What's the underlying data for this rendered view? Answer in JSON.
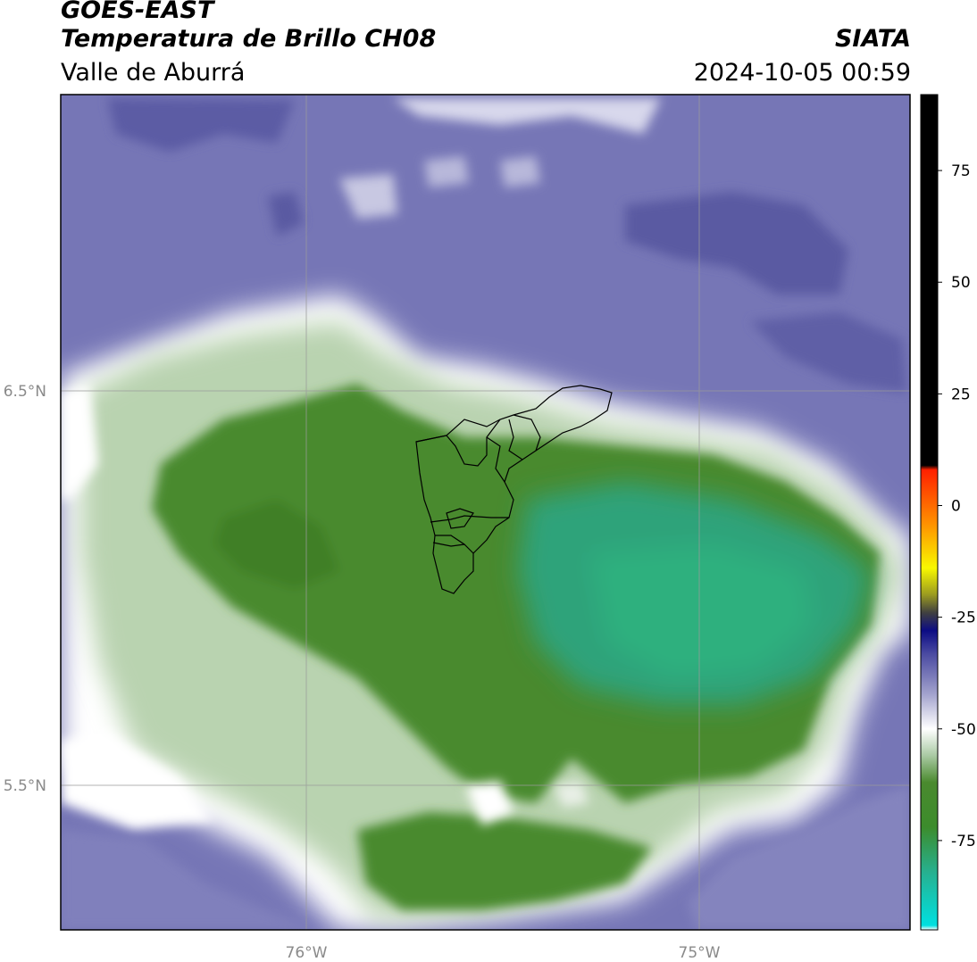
{
  "header": {
    "title_line1": "GOES-EAST",
    "title_line2": "Temperatura de Brillo CH08",
    "subtitle": "Valle de Aburrá",
    "organization": "SIATA",
    "datetime": "2024-10-05 00:59"
  },
  "map": {
    "lon_labels": [
      "76°W",
      "75°W"
    ],
    "lat_labels": [
      "6.5°N",
      "5.5°N"
    ],
    "lon_range": [
      -76.63,
      -74.47
    ],
    "lat_range": [
      5.13,
      7.25
    ],
    "colors": {
      "cold_cloud_green": "#3f8a2a",
      "core_teal": "#2fa37a",
      "clear_sky_purple": "#7474b4",
      "transition_white": "#ffffff",
      "boundary_line": "#000000",
      "gridline": "#9a9a9a"
    }
  },
  "colorbar": {
    "ticks": [
      "75",
      "50",
      "25",
      "0",
      "-25",
      "-50",
      "-75"
    ],
    "tick_values": [
      75,
      50,
      25,
      0,
      -25,
      -50,
      -75
    ],
    "range": [
      -95,
      92
    ],
    "stops": [
      {
        "value": -95,
        "color": "#ffffff"
      },
      {
        "value": -94,
        "color": "#00e0e0"
      },
      {
        "value": -82,
        "color": "#27b08f"
      },
      {
        "value": -72,
        "color": "#3c8c2c"
      },
      {
        "value": -62,
        "color": "#4a8a2e"
      },
      {
        "value": -56,
        "color": "#a9c9a3"
      },
      {
        "value": -50,
        "color": "#ffffff"
      },
      {
        "value": -42,
        "color": "#a0a0cc"
      },
      {
        "value": -33,
        "color": "#4848a0"
      },
      {
        "value": -28,
        "color": "#0c0c84"
      },
      {
        "value": -24,
        "color": "#404040"
      },
      {
        "value": -20,
        "color": "#9a9a20"
      },
      {
        "value": -14,
        "color": "#f8f800"
      },
      {
        "value": -4,
        "color": "#ff9000"
      },
      {
        "value": 8,
        "color": "#ff2000"
      },
      {
        "value": 9,
        "color": "#000000"
      },
      {
        "value": 92,
        "color": "#000000"
      }
    ]
  }
}
